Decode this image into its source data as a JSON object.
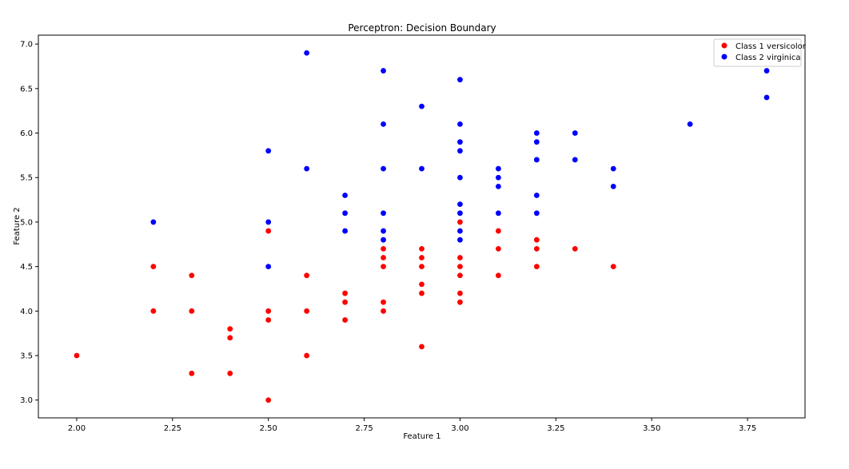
{
  "chart_data": {
    "type": "scatter",
    "title": "Perceptron: Decision Boundary",
    "xlabel": "Feature 1",
    "ylabel": "Feature 2",
    "xlim": [
      1.9,
      3.9
    ],
    "ylim": [
      2.8,
      7.1
    ],
    "xticks": [
      "2.00",
      "2.25",
      "2.50",
      "2.75",
      "3.00",
      "3.25",
      "3.50",
      "3.75"
    ],
    "yticks": [
      "3.0",
      "3.5",
      "4.0",
      "4.5",
      "5.0",
      "5.5",
      "6.0",
      "6.5",
      "7.0"
    ],
    "grid": false,
    "legend_position": "top-right",
    "series": [
      {
        "name": "Class 1 versicolor",
        "color": "#ff0000",
        "points": [
          [
            2.0,
            3.5
          ],
          [
            2.2,
            4.5
          ],
          [
            2.2,
            4.0
          ],
          [
            2.3,
            4.4
          ],
          [
            2.3,
            4.0
          ],
          [
            2.3,
            3.3
          ],
          [
            2.4,
            3.8
          ],
          [
            2.4,
            3.7
          ],
          [
            2.4,
            3.3
          ],
          [
            2.5,
            4.9
          ],
          [
            2.5,
            4.0
          ],
          [
            2.5,
            3.9
          ],
          [
            2.5,
            3.0
          ],
          [
            2.6,
            4.4
          ],
          [
            2.6,
            4.0
          ],
          [
            2.6,
            3.5
          ],
          [
            2.7,
            4.2
          ],
          [
            2.7,
            4.1
          ],
          [
            2.7,
            3.9
          ],
          [
            2.8,
            4.7
          ],
          [
            2.8,
            4.6
          ],
          [
            2.8,
            4.5
          ],
          [
            2.8,
            4.1
          ],
          [
            2.8,
            4.0
          ],
          [
            2.9,
            4.7
          ],
          [
            2.9,
            4.6
          ],
          [
            2.9,
            4.5
          ],
          [
            2.9,
            4.3
          ],
          [
            2.9,
            4.2
          ],
          [
            2.9,
            3.6
          ],
          [
            3.0,
            5.0
          ],
          [
            3.0,
            4.6
          ],
          [
            3.0,
            4.5
          ],
          [
            3.0,
            4.4
          ],
          [
            3.0,
            4.2
          ],
          [
            3.0,
            4.1
          ],
          [
            3.1,
            4.9
          ],
          [
            3.1,
            4.7
          ],
          [
            3.1,
            4.4
          ],
          [
            3.2,
            4.8
          ],
          [
            3.2,
            4.7
          ],
          [
            3.2,
            4.5
          ],
          [
            3.3,
            4.7
          ],
          [
            3.4,
            4.5
          ]
        ]
      },
      {
        "name": "Class 2 virginica",
        "color": "#0000ff",
        "points": [
          [
            2.2,
            5.0
          ],
          [
            2.5,
            5.8
          ],
          [
            2.5,
            5.0
          ],
          [
            2.5,
            4.5
          ],
          [
            2.6,
            6.9
          ],
          [
            2.6,
            5.6
          ],
          [
            2.7,
            5.3
          ],
          [
            2.7,
            5.1
          ],
          [
            2.7,
            4.9
          ],
          [
            2.8,
            6.7
          ],
          [
            2.8,
            6.1
          ],
          [
            2.8,
            5.6
          ],
          [
            2.8,
            5.1
          ],
          [
            2.8,
            4.9
          ],
          [
            2.8,
            4.8
          ],
          [
            2.9,
            6.3
          ],
          [
            2.9,
            5.6
          ],
          [
            3.0,
            6.6
          ],
          [
            3.0,
            6.1
          ],
          [
            3.0,
            5.9
          ],
          [
            3.0,
            5.8
          ],
          [
            3.0,
            5.5
          ],
          [
            3.0,
            5.2
          ],
          [
            3.0,
            5.1
          ],
          [
            3.0,
            4.9
          ],
          [
            3.0,
            4.8
          ],
          [
            3.1,
            5.6
          ],
          [
            3.1,
            5.5
          ],
          [
            3.1,
            5.4
          ],
          [
            3.1,
            5.1
          ],
          [
            3.2,
            6.0
          ],
          [
            3.2,
            5.9
          ],
          [
            3.2,
            5.7
          ],
          [
            3.2,
            5.3
          ],
          [
            3.2,
            5.1
          ],
          [
            3.3,
            6.0
          ],
          [
            3.3,
            5.7
          ],
          [
            3.4,
            5.6
          ],
          [
            3.4,
            5.4
          ],
          [
            3.6,
            6.1
          ],
          [
            3.8,
            6.7
          ],
          [
            3.8,
            6.4
          ]
        ]
      }
    ]
  }
}
